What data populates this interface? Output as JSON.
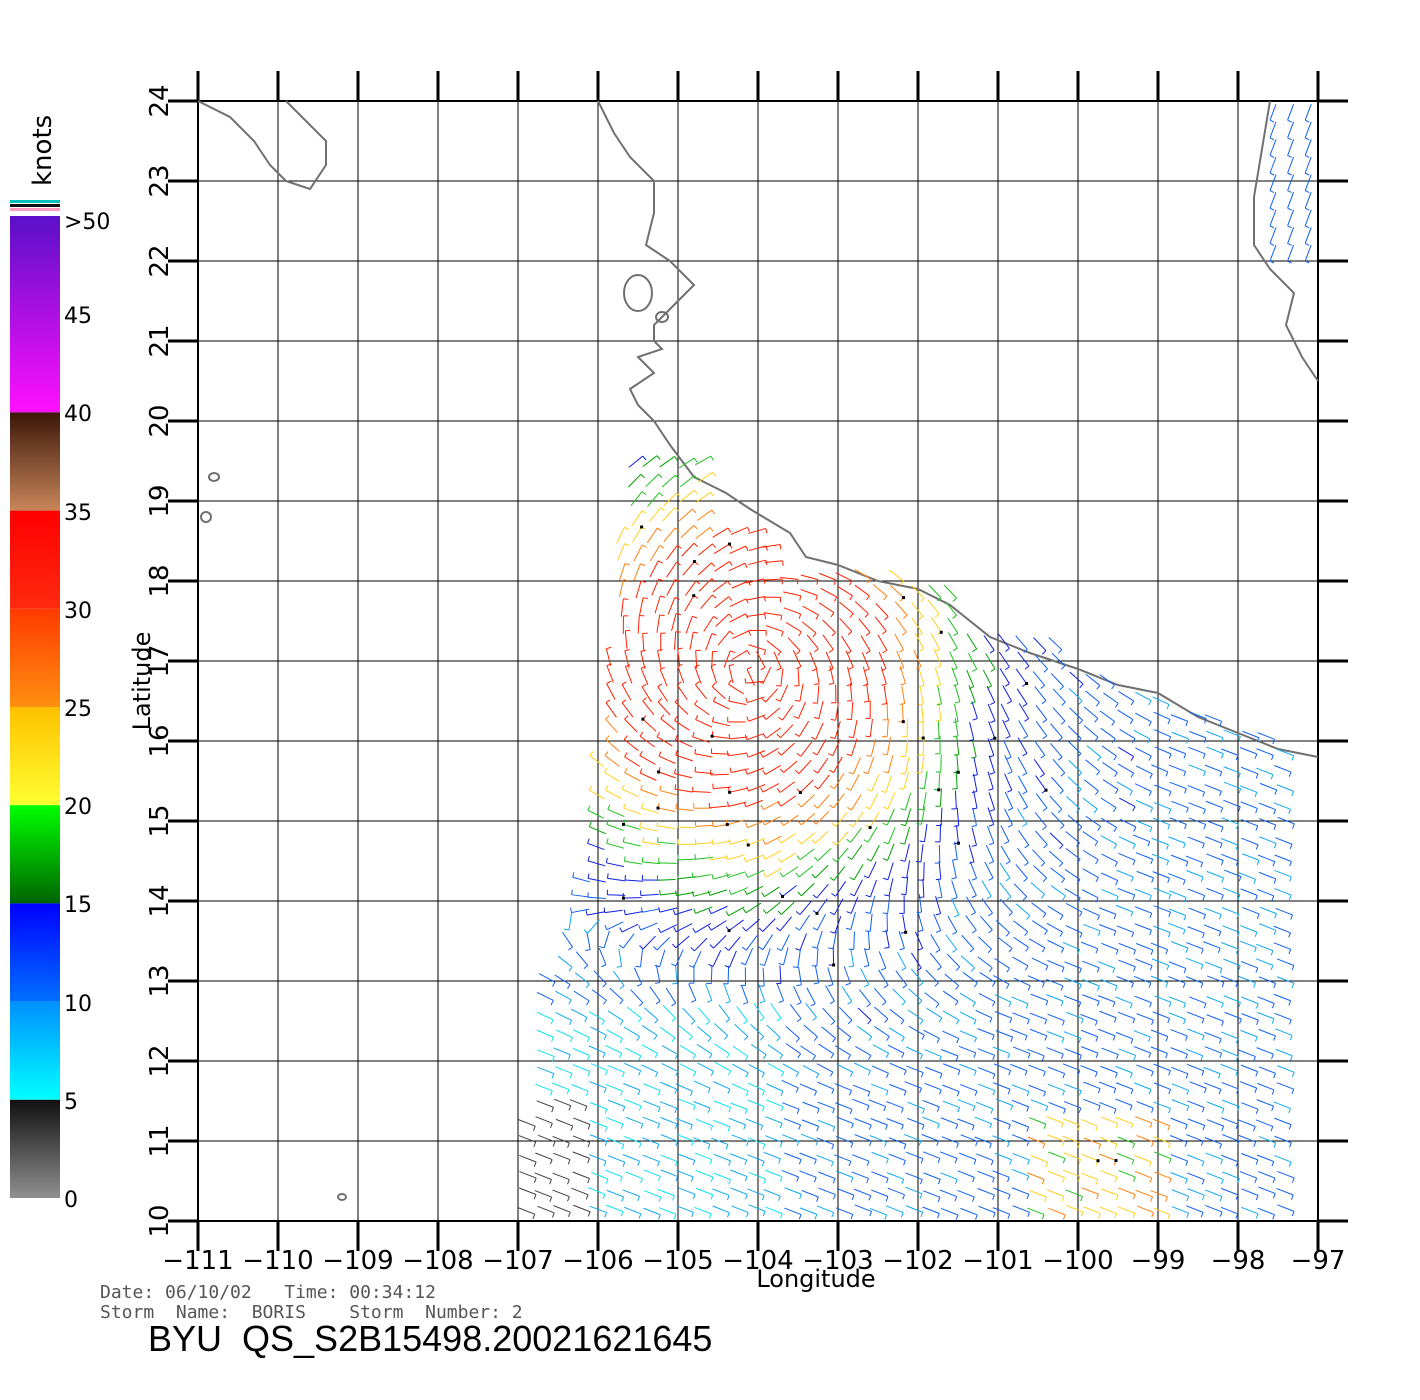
{
  "colorbar": {
    "units": "knots",
    "labels": [
      ">50",
      "45",
      "40",
      "35",
      "30",
      "25",
      "20",
      "15",
      "10",
      "5",
      "0"
    ],
    "stops": [
      {
        "from": 50,
        "to": 40,
        "color_top": "#5a10c8",
        "color_bottom": "#ff10ff"
      },
      {
        "from": 40,
        "to": 35,
        "color_top": "#3b1608",
        "color_bottom": "#c8865a"
      },
      {
        "from": 35,
        "to": 30,
        "color_top": "#ff0000",
        "color_bottom": "#ff2a10"
      },
      {
        "from": 30,
        "to": 25,
        "color_top": "#ff3a00",
        "color_bottom": "#ff9010"
      },
      {
        "from": 25,
        "to": 20,
        "color_top": "#ffc000",
        "color_bottom": "#ffff30"
      },
      {
        "from": 20,
        "to": 15,
        "color_top": "#00ff00",
        "color_bottom": "#006400"
      },
      {
        "from": 15,
        "to": 10,
        "color_top": "#0000ff",
        "color_bottom": "#0070ff"
      },
      {
        "from": 10,
        "to": 5,
        "color_top": "#0090ff",
        "color_bottom": "#00ffff"
      },
      {
        "from": 5,
        "to": 0,
        "color_top": "#101010",
        "color_bottom": "#909090"
      }
    ],
    "top_stripes": [
      "#00c0c0",
      "#101010",
      "#ff9ac0"
    ]
  },
  "map": {
    "xlabel": "Longitude",
    "ylabel": "Latitude",
    "lon_range": [
      -111,
      -97
    ],
    "lat_range": [
      10,
      24
    ],
    "x_ticks": [
      "−111",
      "−110",
      "−109",
      "−108",
      "−107",
      "−106",
      "−105",
      "−104",
      "−103",
      "−102",
      "−101",
      "−100",
      "−99",
      "−98",
      "−97"
    ],
    "y_ticks": [
      "10",
      "11",
      "12",
      "13",
      "14",
      "15",
      "16",
      "17",
      "18",
      "19",
      "20",
      "21",
      "22",
      "23",
      "24"
    ],
    "grid": true,
    "coastline_color": "#707070",
    "storm_center": {
      "lon": -104.1,
      "lat": 16.9
    }
  },
  "footer": {
    "date_line": "Date: 06/10/02   Time: 00:34:12",
    "storm_line": "Storm  Name:  BORIS    Storm  Number: 2",
    "product_id": "BYU  QS_S2B15498.20021621645"
  }
}
